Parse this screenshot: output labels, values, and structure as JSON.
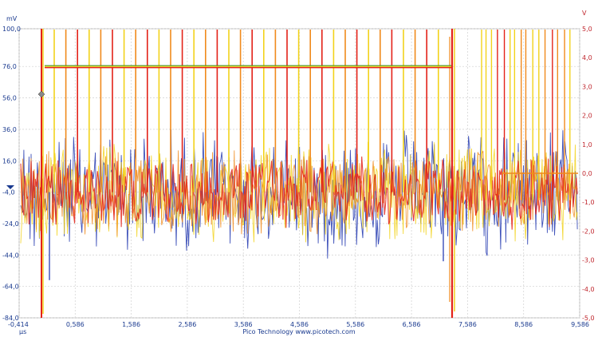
{
  "scope": {
    "left_axis": {
      "unit": "mV",
      "ticks": [
        "100,0",
        "76,0",
        "56,0",
        "36,0",
        "16,0",
        "-4,0",
        "-24,0",
        "-44,0",
        "-64,0",
        "-84,0"
      ],
      "values": [
        100,
        76,
        56,
        36,
        16,
        -4,
        -24,
        -44,
        -64,
        -84
      ],
      "color": "#1a3a8f"
    },
    "right_axis": {
      "unit": "V",
      "ticks": [
        "5,0",
        "4,0",
        "3,0",
        "2,0",
        "1,0",
        "0,0",
        "-1,0",
        "-2,0",
        "-3,0",
        "-4,0",
        "-5,0"
      ],
      "values": [
        5,
        4,
        3,
        2,
        1,
        0,
        -1,
        -2,
        -3,
        -4,
        -5
      ],
      "color": "#c0282f"
    },
    "x_axis": {
      "unit": "µs",
      "ticks": [
        "-0,414",
        "0,586",
        "1,586",
        "2,586",
        "3,586",
        "4,586",
        "5,586",
        "6,586",
        "7,586",
        "8,586",
        "9,586"
      ],
      "values": [
        -0.414,
        0.586,
        1.586,
        2.586,
        3.586,
        4.586,
        5.586,
        6.586,
        7.586,
        8.586,
        9.586
      ]
    },
    "credit": "Pico Technology   www.picotech.com",
    "trace_colors": {
      "blue": "#2a3fb3",
      "yellow": "#f2d21b",
      "orange": "#f08a1c",
      "red": "#e32218",
      "green": "#2e8b2e"
    },
    "chart_data": {
      "type": "line",
      "title": "",
      "xlabel": "µs",
      "ylabel": "mV",
      "y2label": "V",
      "xlim": [
        -0.414,
        9.586
      ],
      "ylim": [
        -84,
        100
      ],
      "y2lim": [
        -5,
        5
      ],
      "grid": true,
      "series": [
        {
          "color": "#2a3fb3",
          "description": "noise with periodic spikes",
          "y_range_mV": [
            -40,
            40
          ]
        },
        {
          "color": "#f2d21b",
          "description": "noise",
          "y_range_mV": [
            -30,
            35
          ]
        },
        {
          "color": "#f08a1c",
          "description": "noise",
          "y_range_mV": [
            -25,
            30
          ]
        },
        {
          "color": "#e32218",
          "description": "noise with spikes to top",
          "y_range_mV": [
            -20,
            25
          ]
        }
      ],
      "level_line": {
        "y": 76,
        "x_start": 0.0,
        "x_end": 7.0
      },
      "secondary_level": {
        "y_V": 0.0,
        "x_start": 8.2,
        "x_end": 9.6
      }
    }
  }
}
